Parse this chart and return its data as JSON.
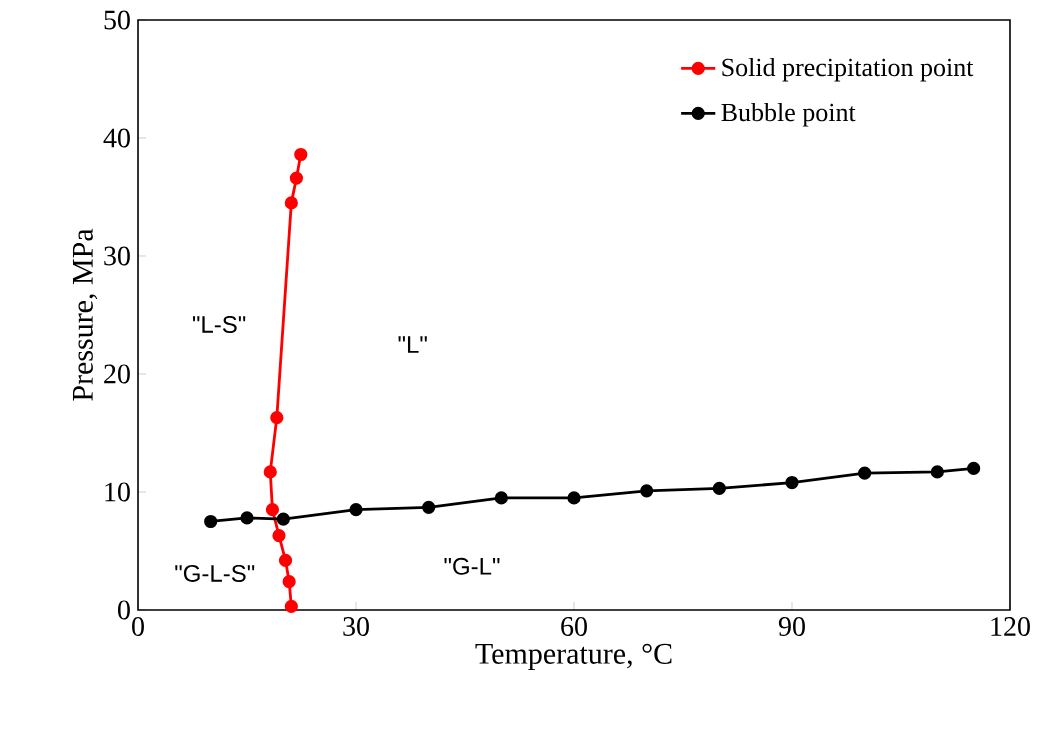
{
  "chart_data": {
    "type": "line",
    "xlabel": "Temperature, °C",
    "ylabel": "Pressure, MPa",
    "xlim": [
      0,
      120
    ],
    "xticks": [
      0,
      30,
      60,
      90,
      120
    ],
    "ylim": [
      0,
      50
    ],
    "yticks": [
      0,
      10,
      20,
      30,
      40,
      50
    ],
    "grid": false,
    "legend": "top right",
    "marker": "circle",
    "line_style": "solid",
    "series": [
      {
        "name": "Solid precipitation point",
        "color": "#ff0000",
        "x": [
          21.1,
          20.8,
          20.3,
          19.4,
          18.5,
          18.2,
          19.1,
          21.1,
          21.8,
          22.4
        ],
        "values": [
          0.3,
          2.4,
          4.2,
          6.3,
          8.5,
          11.7,
          16.3,
          34.5,
          36.6,
          38.6
        ]
      },
      {
        "name": "Bubble point",
        "color": "#000000",
        "x": [
          10,
          15,
          20,
          30,
          40,
          50,
          60,
          70,
          80,
          90,
          100,
          110,
          115
        ],
        "values": [
          7.5,
          7.8,
          7.7,
          8.5,
          8.7,
          9.5,
          9.5,
          10.1,
          10.3,
          10.8,
          11.6,
          11.7,
          12.0
        ]
      }
    ],
    "annotations": [
      "\"L-S\"",
      "\"L\"",
      "\"G-L-S\"",
      "\"G-L\""
    ]
  }
}
